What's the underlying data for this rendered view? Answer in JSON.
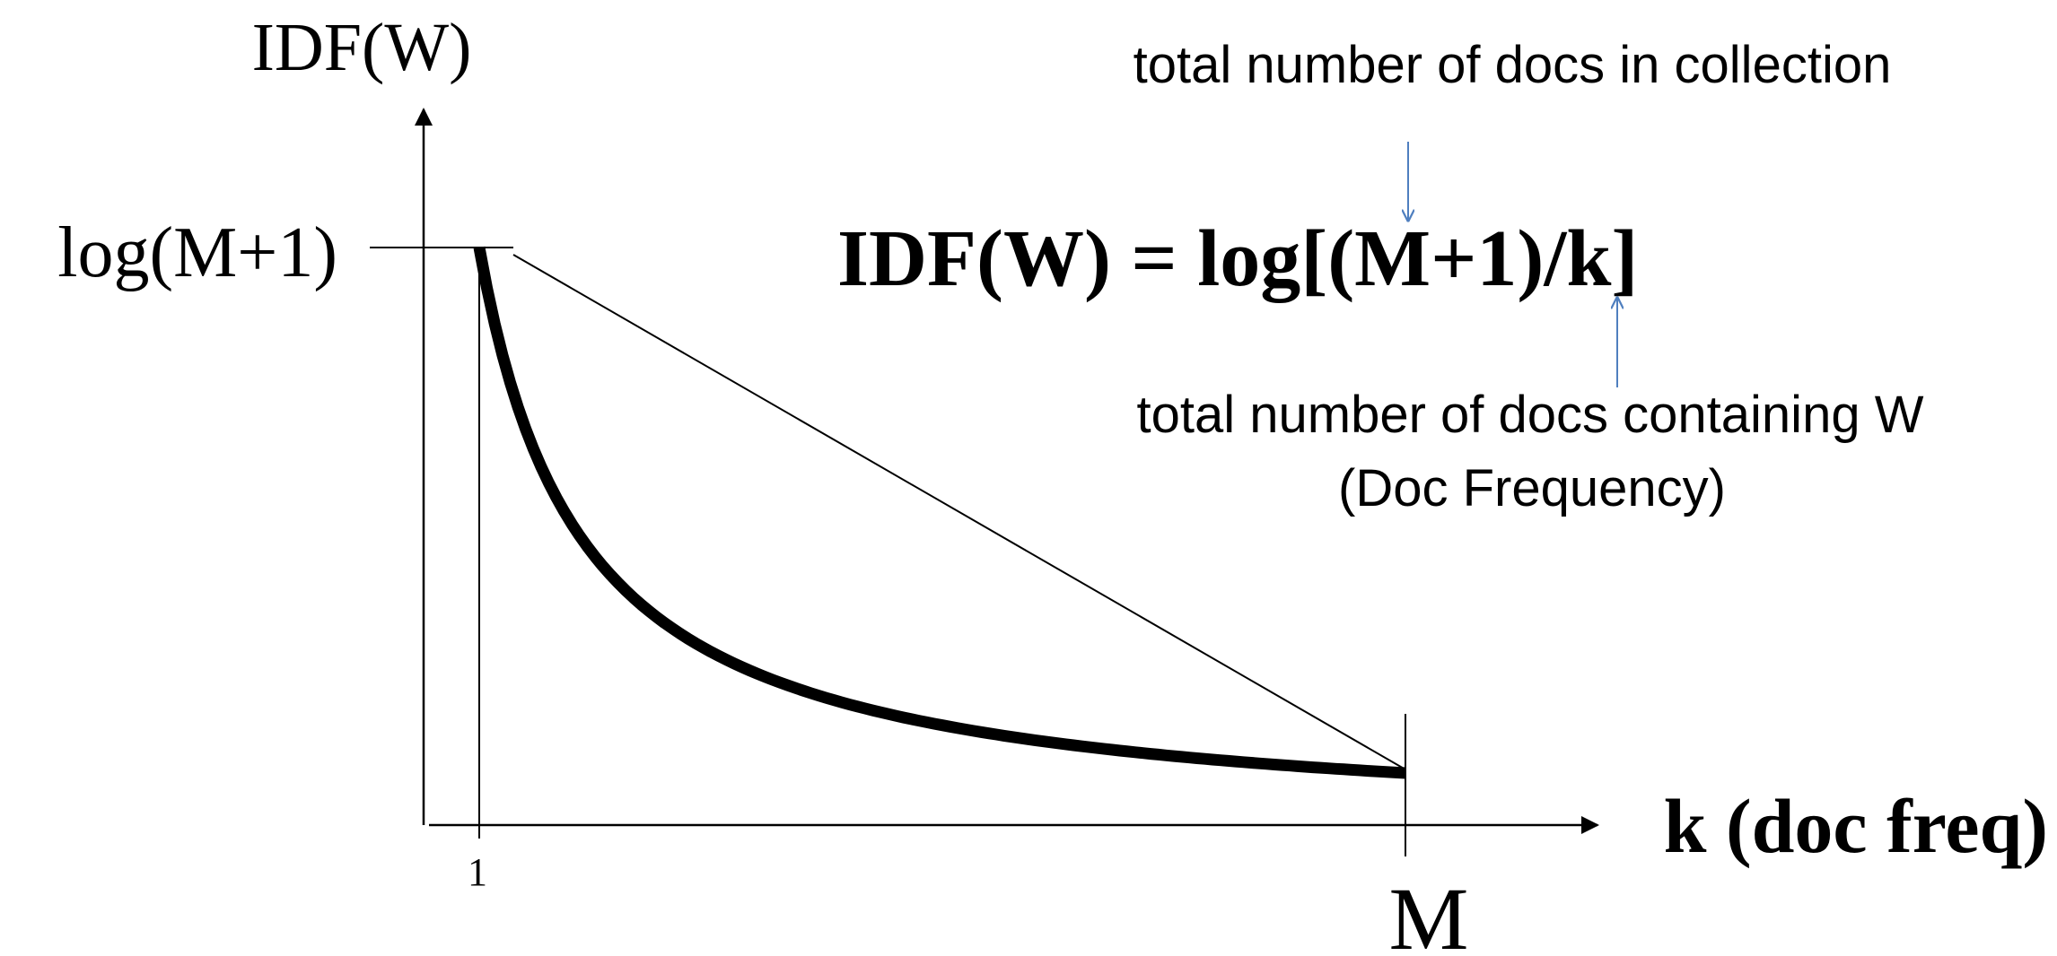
{
  "diagram": {
    "y_axis_label": "IDF(W)",
    "y_axis_max_label": "log(M+1)",
    "x_axis_label": "k (doc freq)",
    "x_tick_start": "1",
    "x_tick_end": "M",
    "formula": "IDF(W) = log[(M+1)/k]",
    "annotation_top": "total number of docs in collection",
    "annotation_bottom_line1": "total number of docs containing W",
    "annotation_bottom_line2": "(Doc Frequency)",
    "colors": {
      "ink": "#000000",
      "annotation_arrow": "#4f7fbf"
    }
  }
}
